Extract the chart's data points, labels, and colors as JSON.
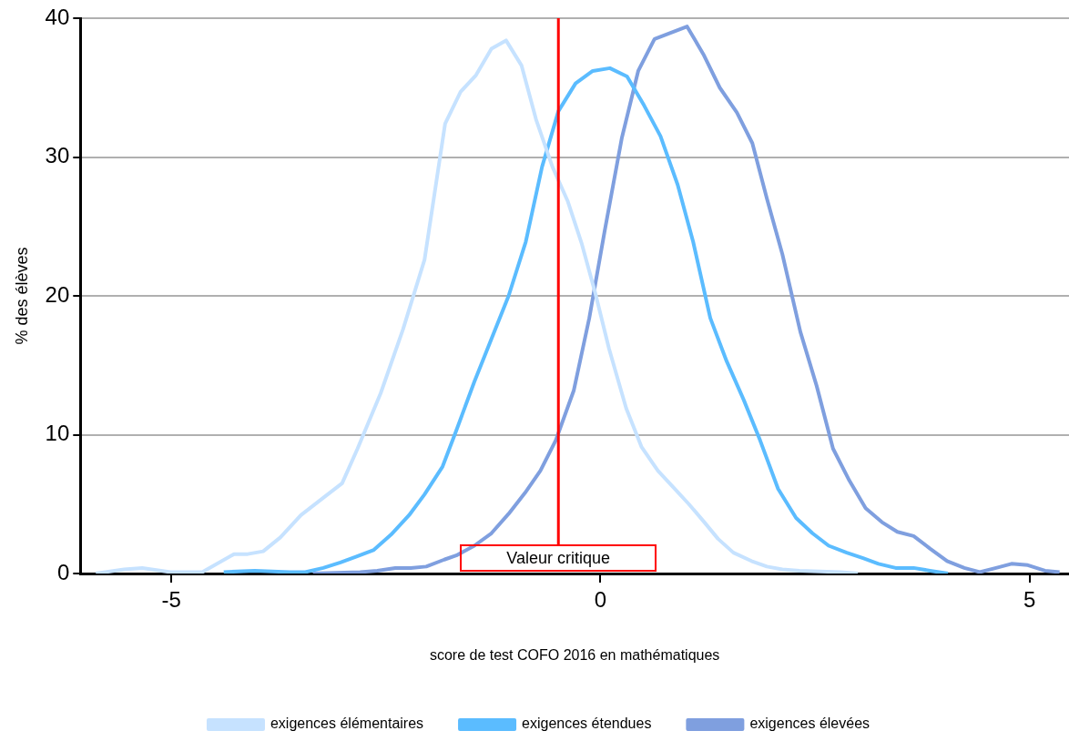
{
  "chart_data": {
    "type": "line",
    "xlabel": "score de test COFO 2016 en mathématiques",
    "ylabel": "% des élèves",
    "xlim": [
      -6.06,
      5.46
    ],
    "ylim": [
      0,
      40
    ],
    "xticks": [
      -5,
      0,
      5
    ],
    "yticks": [
      0,
      10,
      20,
      30,
      40
    ],
    "grid": "y",
    "legend": "bottom",
    "marker": "none",
    "line_style": "solid",
    "ref_lines": [
      {
        "axis": "x",
        "value": -0.49,
        "label": "Valeur critique",
        "color": "#ff0000"
      }
    ],
    "series": [
      {
        "name": "exigences élémentaires",
        "color": "#c6e2ff",
        "x": [
          -5.88,
          -5.55,
          -5.34,
          -5.01,
          -4.64,
          -4.27,
          -4.11,
          -3.93,
          -3.73,
          -3.49,
          -3.22,
          -3.01,
          -2.83,
          -2.56,
          -2.3,
          -2.05,
          -1.81,
          -1.63,
          -1.45,
          -1.27,
          -1.1,
          -0.92,
          -0.75,
          -0.56,
          -0.38,
          -0.22,
          -0.06,
          0.1,
          0.3,
          0.48,
          0.67,
          0.85,
          1.03,
          1.21,
          1.37,
          1.55,
          1.76,
          1.94,
          2.12,
          2.32,
          2.8,
          3.0
        ],
        "values": [
          0,
          0.3,
          0.4,
          0.1,
          0.1,
          1.4,
          1.4,
          1.6,
          2.6,
          4.2,
          5.5,
          6.5,
          9,
          13,
          17.6,
          22.6,
          32.4,
          34.7,
          35.9,
          37.8,
          38.4,
          36.6,
          32.7,
          29.3,
          26.8,
          23.8,
          20.2,
          16.2,
          11.9,
          9.1,
          7.4,
          6.2,
          5,
          3.7,
          2.5,
          1.5,
          0.9,
          0.5,
          0.3,
          0.2,
          0.1,
          0
        ]
      },
      {
        "name": "exigences étendues",
        "color": "#5bbcff",
        "x": [
          -4.39,
          -4.03,
          -3.62,
          -3.44,
          -3.23,
          -3.03,
          -2.85,
          -2.64,
          -2.44,
          -2.23,
          -2.05,
          -1.84,
          -1.68,
          -1.47,
          -1.27,
          -1.07,
          -0.87,
          -0.68,
          -0.49,
          -0.29,
          -0.09,
          0.11,
          0.31,
          0.51,
          0.7,
          0.9,
          1.08,
          1.28,
          1.47,
          1.67,
          1.86,
          2.07,
          2.28,
          2.47,
          2.66,
          2.87,
          3.06,
          3.24,
          3.44,
          3.65,
          3.84,
          4.05
        ],
        "values": [
          0.1,
          0.2,
          0.1,
          0.1,
          0.4,
          0.8,
          1.2,
          1.7,
          2.8,
          4.2,
          5.7,
          7.7,
          10.3,
          13.8,
          16.9,
          20,
          23.9,
          29.3,
          33.3,
          35.3,
          36.2,
          36.4,
          35.8,
          33.7,
          31.5,
          28,
          23.9,
          18.4,
          15.3,
          12.5,
          9.6,
          6.1,
          4,
          2.9,
          2,
          1.5,
          1.1,
          0.7,
          0.4,
          0.4,
          0.2,
          0
        ]
      },
      {
        "name": "exigences élevées",
        "color": "#7f9fdf",
        "x": [
          -3.35,
          -2.8,
          -2.6,
          -2.39,
          -2.21,
          -2.03,
          -1.82,
          -1.68,
          -1.47,
          -1.27,
          -1.07,
          -0.88,
          -0.7,
          -0.52,
          -0.31,
          -0.13,
          0.05,
          0.25,
          0.44,
          0.63,
          1.01,
          1.2,
          1.39,
          1.59,
          1.77,
          1.94,
          2.12,
          2.33,
          2.52,
          2.71,
          2.9,
          3.09,
          3.28,
          3.46,
          3.65,
          3.84,
          4.04,
          4.24,
          4.42,
          4.61,
          4.79,
          4.98,
          5.18,
          5.35
        ],
        "values": [
          0,
          0.1,
          0.2,
          0.4,
          0.4,
          0.5,
          1,
          1.3,
          2,
          2.9,
          4.3,
          5.8,
          7.4,
          9.6,
          13.2,
          18.4,
          24.7,
          31.4,
          36.2,
          38.5,
          39.4,
          37.4,
          35,
          33.2,
          31,
          27,
          23,
          17.4,
          13.5,
          9,
          6.7,
          4.7,
          3.7,
          3,
          2.7,
          1.8,
          0.9,
          0.4,
          0.1,
          0.4,
          0.7,
          0.6,
          0.2,
          0.1
        ]
      }
    ]
  }
}
